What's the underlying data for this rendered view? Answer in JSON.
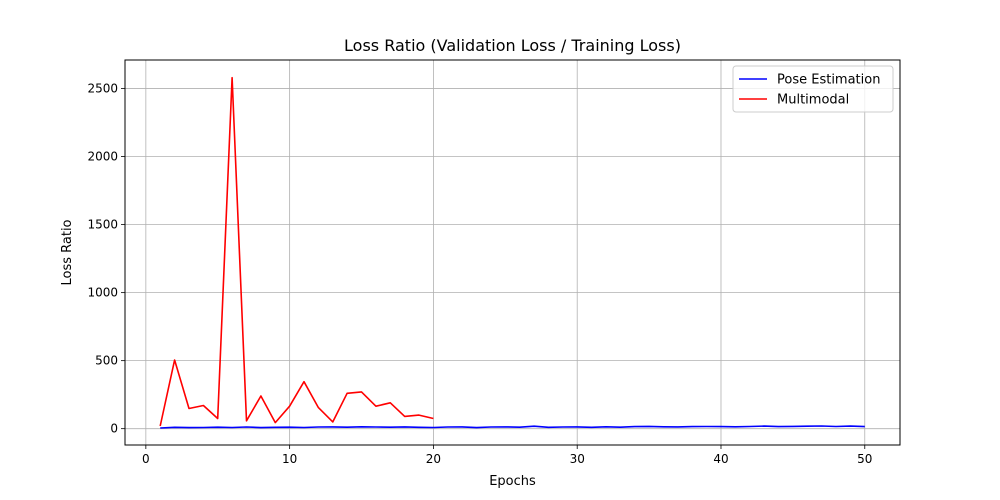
{
  "chart_data": {
    "type": "line",
    "title": "Loss Ratio (Validation Loss / Training Loss)",
    "xlabel": "Epochs",
    "ylabel": "Loss Ratio",
    "xlim": [
      -1.45,
      52.45
    ],
    "ylim": [
      -120,
      2710
    ],
    "xticks": [
      0,
      10,
      20,
      30,
      40,
      50
    ],
    "yticks": [
      0,
      500,
      1000,
      1500,
      2000,
      2500
    ],
    "grid": true,
    "legend_position": "top-right",
    "series": [
      {
        "name": "Pose Estimation",
        "color": "#0000ff",
        "x": [
          1,
          2,
          3,
          4,
          5,
          6,
          7,
          8,
          9,
          10,
          11,
          12,
          13,
          14,
          15,
          16,
          17,
          18,
          19,
          20,
          21,
          22,
          23,
          24,
          25,
          26,
          27,
          28,
          29,
          30,
          31,
          32,
          33,
          34,
          35,
          36,
          37,
          38,
          39,
          40,
          41,
          42,
          43,
          44,
          45,
          46,
          47,
          48,
          49,
          50
        ],
        "values": [
          5,
          10,
          8,
          9,
          11,
          9,
          12,
          8,
          10,
          11,
          9,
          12,
          13,
          11,
          14,
          12,
          11,
          13,
          10,
          9,
          12,
          13,
          8,
          12,
          13,
          11,
          18,
          10,
          12,
          13,
          10,
          14,
          11,
          15,
          17,
          14,
          13,
          15,
          16,
          15,
          14,
          16,
          19,
          15,
          17,
          18,
          20,
          16,
          19,
          15
        ]
      },
      {
        "name": "Multimodal",
        "color": "#ff0000",
        "x": [
          1,
          2,
          3,
          4,
          5,
          6,
          7,
          8,
          9,
          10,
          11,
          12,
          13,
          14,
          15,
          16,
          17,
          18,
          19,
          20
        ],
        "values": [
          20,
          505,
          148,
          170,
          75,
          2580,
          58,
          240,
          45,
          165,
          345,
          155,
          50,
          260,
          270,
          165,
          190,
          90,
          100,
          75
        ]
      }
    ]
  }
}
